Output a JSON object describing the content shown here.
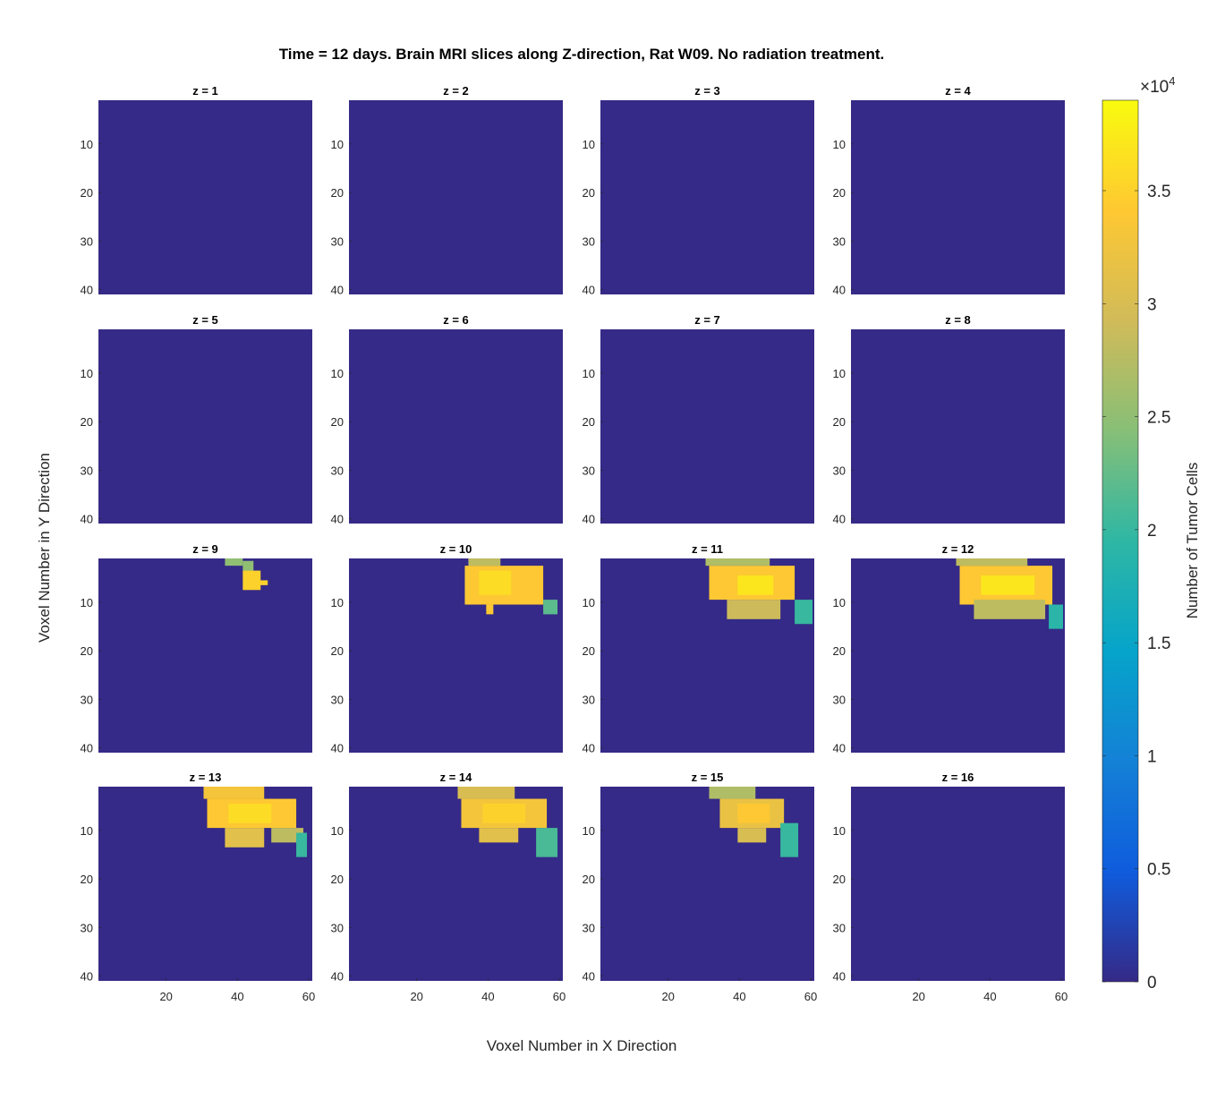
{
  "chart_data": {
    "type": "heatmap",
    "title": "Time = 12 days. Brain MRI slices along Z-direction, Rat W09. No radiation treatment.",
    "xlabel": "Voxel Number in X Direction",
    "ylabel": "Voxel Number in Y Direction",
    "colorbar": {
      "label": "Number of Tumor Cells",
      "exponent_label": "×10",
      "exponent_power": "4",
      "range": [
        0,
        39000
      ],
      "ticks": [
        0,
        5000,
        10000,
        15000,
        20000,
        25000,
        30000,
        35000
      ],
      "tick_labels": [
        "0",
        "0.5",
        "1",
        "1.5",
        "2",
        "2.5",
        "3",
        "3.5"
      ],
      "colormap": "parula",
      "colormap_stops": [
        "#352a87",
        "#0f5cdd",
        "#1481d6",
        "#06a4ca",
        "#2eb7a4",
        "#87bf77",
        "#d1bb59",
        "#fec832",
        "#f9fb0e"
      ]
    },
    "grid": {
      "rows": 4,
      "cols": 4
    },
    "grid_lines": false,
    "x_range": [
      1,
      61
    ],
    "y_range": [
      1,
      41
    ],
    "x_ticks": [
      20,
      40,
      60
    ],
    "x_tick_labels": [
      "20",
      "40",
      "60"
    ],
    "y_ticks": [
      10,
      20,
      30,
      40
    ],
    "y_tick_labels": [
      "10",
      "20",
      "30",
      "40"
    ],
    "y_direction": "reverse",
    "background_value": 0,
    "panels": [
      {
        "title": "z = 1",
        "blobs": []
      },
      {
        "title": "z = 2",
        "blobs": []
      },
      {
        "title": "z = 3",
        "blobs": []
      },
      {
        "title": "z = 4",
        "blobs": []
      },
      {
        "title": "z = 5",
        "blobs": []
      },
      {
        "title": "z = 6",
        "blobs": []
      },
      {
        "title": "z = 7",
        "blobs": []
      },
      {
        "title": "z = 8",
        "blobs": []
      },
      {
        "title": "z = 9",
        "blobs": [
          {
            "x": [
              37,
              41
            ],
            "y": [
              1,
              2
            ],
            "value": 25000
          },
          {
            "x": [
              42,
              44
            ],
            "y": [
              2,
              3
            ],
            "value": 25000
          },
          {
            "x": [
              42,
              46
            ],
            "y": [
              4,
              7
            ],
            "value": 35000
          },
          {
            "x": [
              46,
              48
            ],
            "y": [
              6,
              6
            ],
            "value": 35000
          }
        ]
      },
      {
        "title": "z = 10",
        "blobs": [
          {
            "x": [
              35,
              43
            ],
            "y": [
              1,
              2
            ],
            "value": 28000
          },
          {
            "x": [
              34,
              55
            ],
            "y": [
              3,
              10
            ],
            "value": 34000
          },
          {
            "x": [
              38,
              46
            ],
            "y": [
              4,
              8
            ],
            "value": 36000
          },
          {
            "x": [
              40,
              41
            ],
            "y": [
              11,
              12
            ],
            "value": 34000
          },
          {
            "x": [
              56,
              59
            ],
            "y": [
              10,
              12
            ],
            "value": 22000
          }
        ]
      },
      {
        "title": "z = 11",
        "blobs": [
          {
            "x": [
              31,
              48
            ],
            "y": [
              1,
              2
            ],
            "value": 27000
          },
          {
            "x": [
              32,
              55
            ],
            "y": [
              3,
              9
            ],
            "value": 34000
          },
          {
            "x": [
              40,
              49
            ],
            "y": [
              5,
              8
            ],
            "value": 37000
          },
          {
            "x": [
              37,
              51
            ],
            "y": [
              10,
              13
            ],
            "value": 29000
          },
          {
            "x": [
              56,
              60
            ],
            "y": [
              10,
              14
            ],
            "value": 20000
          }
        ]
      },
      {
        "title": "z = 12",
        "blobs": [
          {
            "x": [
              31,
              50
            ],
            "y": [
              1,
              2
            ],
            "value": 28000
          },
          {
            "x": [
              32,
              57
            ],
            "y": [
              3,
              10
            ],
            "value": 34000
          },
          {
            "x": [
              38,
              52
            ],
            "y": [
              5,
              8
            ],
            "value": 37000
          },
          {
            "x": [
              36,
              55
            ],
            "y": [
              10,
              13
            ],
            "value": 28000
          },
          {
            "x": [
              57,
              60
            ],
            "y": [
              11,
              15
            ],
            "value": 19000
          }
        ]
      },
      {
        "title": "z = 13",
        "blobs": [
          {
            "x": [
              31,
              47
            ],
            "y": [
              1,
              3
            ],
            "value": 33000
          },
          {
            "x": [
              32,
              56
            ],
            "y": [
              4,
              9
            ],
            "value": 34000
          },
          {
            "x": [
              38,
              49
            ],
            "y": [
              5,
              8
            ],
            "value": 36000
          },
          {
            "x": [
              37,
              47
            ],
            "y": [
              10,
              13
            ],
            "value": 31000
          },
          {
            "x": [
              50,
              58
            ],
            "y": [
              10,
              12
            ],
            "value": 28000
          },
          {
            "x": [
              57,
              59
            ],
            "y": [
              11,
              15
            ],
            "value": 20000
          }
        ]
      },
      {
        "title": "z = 14",
        "blobs": [
          {
            "x": [
              32,
              47
            ],
            "y": [
              1,
              3
            ],
            "value": 30000
          },
          {
            "x": [
              33,
              56
            ],
            "y": [
              4,
              9
            ],
            "value": 33000
          },
          {
            "x": [
              39,
              50
            ],
            "y": [
              5,
              8
            ],
            "value": 35000
          },
          {
            "x": [
              38,
              48
            ],
            "y": [
              10,
              12
            ],
            "value": 31000
          },
          {
            "x": [
              54,
              59
            ],
            "y": [
              10,
              15
            ],
            "value": 21000
          }
        ]
      },
      {
        "title": "z = 15",
        "blobs": [
          {
            "x": [
              32,
              44
            ],
            "y": [
              1,
              3
            ],
            "value": 27000
          },
          {
            "x": [
              35,
              52
            ],
            "y": [
              4,
              9
            ],
            "value": 32000
          },
          {
            "x": [
              40,
              48
            ],
            "y": [
              5,
              8
            ],
            "value": 34000
          },
          {
            "x": [
              40,
              47
            ],
            "y": [
              10,
              12
            ],
            "value": 30000
          },
          {
            "x": [
              52,
              56
            ],
            "y": [
              9,
              15
            ],
            "value": 20000
          }
        ]
      },
      {
        "title": "z = 16",
        "blobs": []
      }
    ]
  }
}
